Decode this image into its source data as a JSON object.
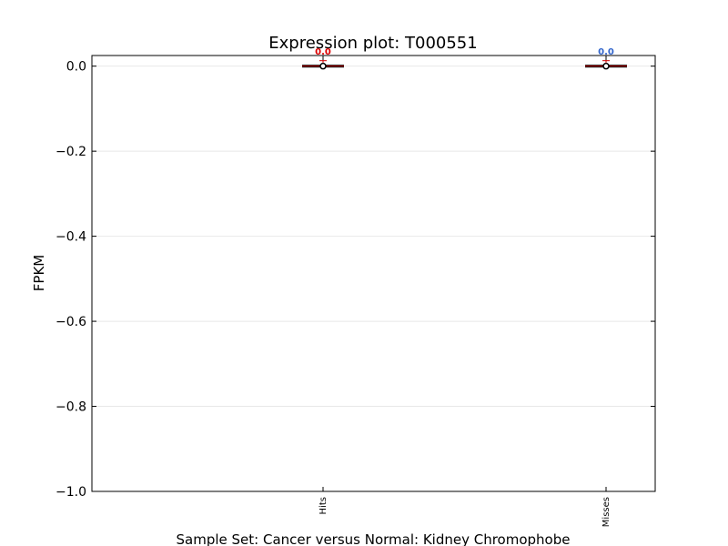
{
  "chart_data": {
    "type": "box",
    "title": "Expression plot: T000551",
    "xlabel": "Sample Set: Cancer versus Normal: Kidney Chromophobe",
    "ylabel": "FPKM",
    "ylim": [
      -1.0,
      0.025
    ],
    "yticks": [
      0.0,
      -0.2,
      -0.4,
      -0.6,
      -0.8,
      -1.0
    ],
    "ytick_labels": [
      "0.0",
      "−0.2",
      "−0.4",
      "−0.6",
      "−0.8",
      "−1.0"
    ],
    "grid": true,
    "categories": [
      "Hits",
      "Misses"
    ],
    "series": [
      {
        "min": 0.0,
        "q1": 0.0,
        "median": 0.0,
        "q3": 0.0,
        "max": 0.0,
        "mean": 0.0,
        "data_label": "0.0",
        "label_color": "#dd0000"
      },
      {
        "min": 0.0,
        "q1": 0.0,
        "median": 0.0,
        "q3": 0.0,
        "max": 0.0,
        "mean": 0.0,
        "data_label": "0.0",
        "label_color": "#3366cc"
      }
    ]
  }
}
